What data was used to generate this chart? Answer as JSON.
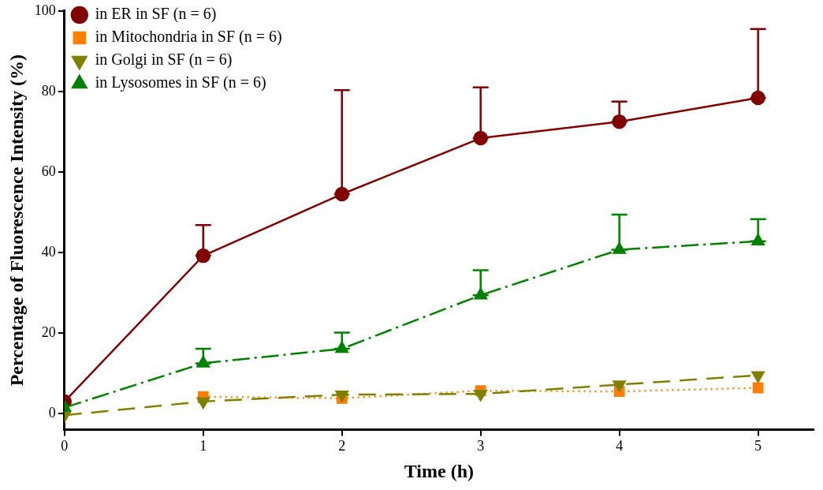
{
  "chart_data": {
    "type": "line",
    "xlabel": "Time (h)",
    "ylabel": "Percentage of Fluorescence Intensity (%)",
    "x": [
      0,
      1,
      2,
      3,
      4,
      5
    ],
    "xlim": [
      0,
      5.4
    ],
    "xticks": [
      0,
      1,
      2,
      3,
      4,
      5
    ],
    "ylim": [
      -4,
      100
    ],
    "yticks": [
      0,
      20,
      40,
      60,
      80,
      100
    ],
    "grid": false,
    "legend": "top left",
    "series": [
      {
        "name": "in ER in SF (n = 6)",
        "color": "#800000",
        "marker": "circle",
        "line_style": "solid",
        "values": [
          3,
          39.2,
          54.5,
          68.4,
          72.5,
          78.4
        ],
        "errors": [
          null,
          [
            39.2,
            46.8
          ],
          [
            54.5,
            80.3
          ],
          [
            68.4,
            81
          ],
          [
            72.5,
            77.5
          ],
          [
            78.4,
            95.5
          ]
        ]
      },
      {
        "name": "in Mitochondria in SF (n = 6)",
        "color": "#ff8000",
        "marker": "square",
        "line_style": "dotted",
        "values": [
          null,
          4.2,
          3.8,
          5.7,
          5.5,
          6.4
        ]
      },
      {
        "name": "in Golgi in SF (n = 6)",
        "color": "#808000",
        "marker": "triangle-down",
        "line_style": "dashed",
        "values": [
          -0.4,
          3,
          4.7,
          4.9,
          7.2,
          9.5
        ]
      },
      {
        "name": "in Lysosomes in SF (n = 6)",
        "color": "#008000",
        "marker": "triangle",
        "line_style": "dashdot",
        "values": [
          1.5,
          12.5,
          16.1,
          29.4,
          40.7,
          42.8
        ],
        "errors": [
          null,
          [
            12.5,
            16.1
          ],
          [
            16.1,
            20.1
          ],
          [
            29.4,
            35.6
          ],
          [
            40.7,
            49.4
          ],
          [
            42.8,
            48.3
          ]
        ]
      }
    ]
  }
}
